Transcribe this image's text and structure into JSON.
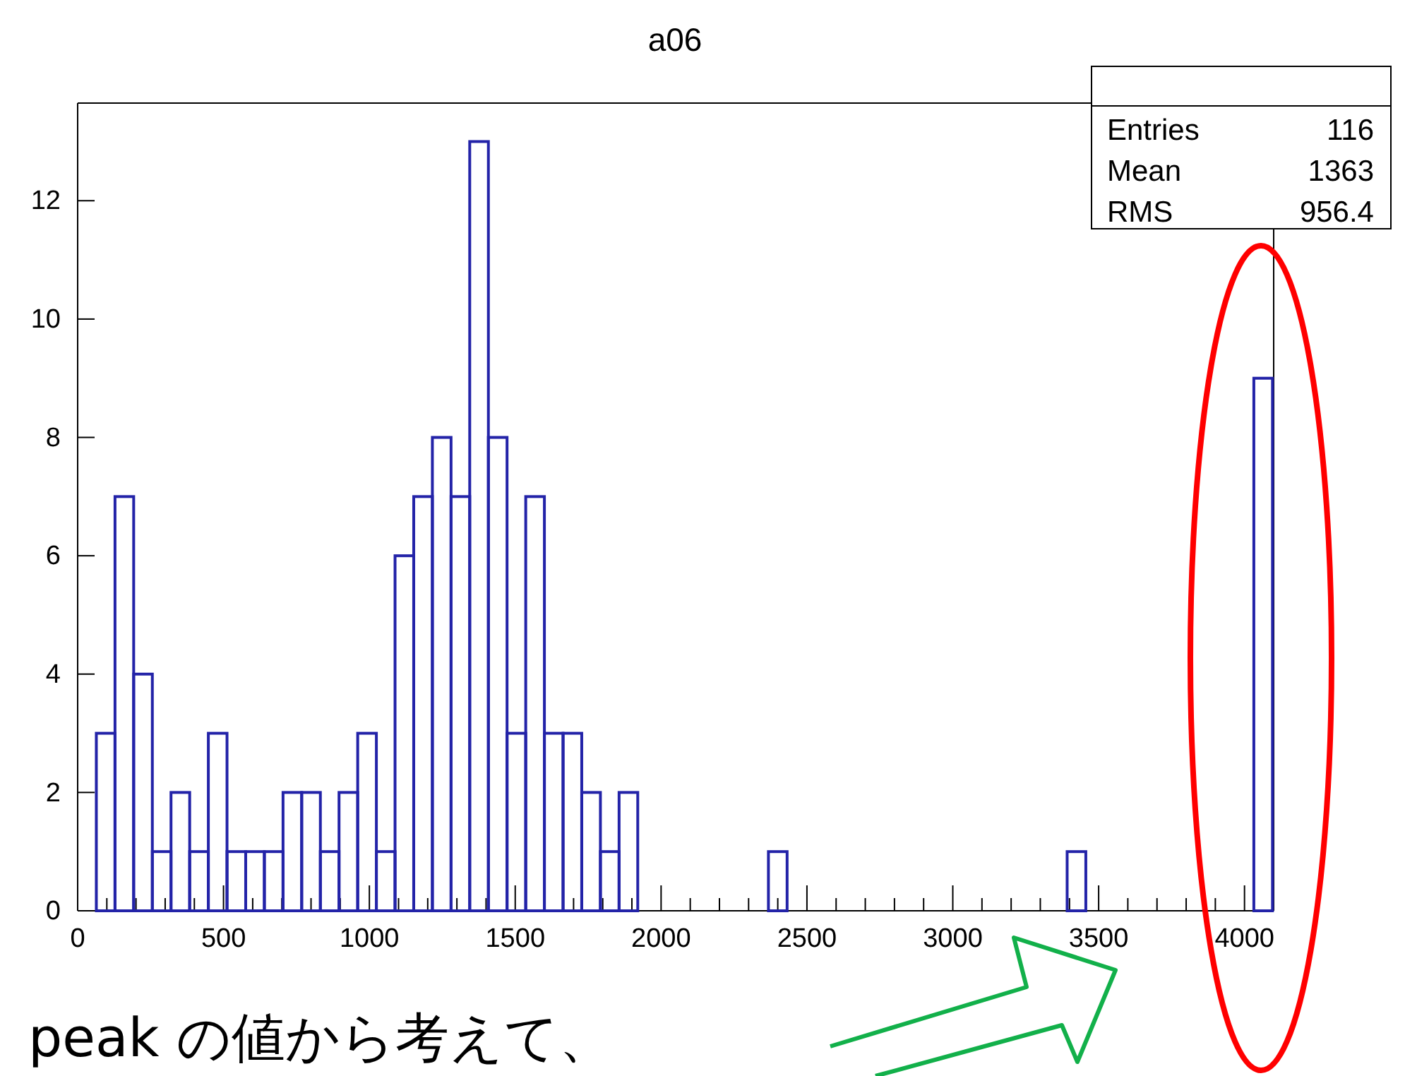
{
  "chart_data": {
    "type": "histogram",
    "title": "a06",
    "bins": [
      0,
      64,
      128,
      192,
      256,
      320,
      384,
      448,
      512,
      576,
      640,
      704,
      768,
      832,
      896,
      960,
      1024,
      1088,
      1152,
      1216,
      1280,
      1344,
      1408,
      1472,
      1536,
      1600,
      1664,
      1728,
      1792,
      1856,
      1920,
      1984,
      2048,
      2112,
      2176,
      2240,
      2304,
      2368,
      2432,
      2496,
      2560,
      2624,
      2688,
      2752,
      2816,
      2880,
      2944,
      3008,
      3072,
      3136,
      3200,
      3264,
      3328,
      3392,
      3456,
      3520,
      3584,
      3648,
      3712,
      3776,
      3840,
      3904,
      3968,
      4032,
      4096
    ],
    "values": [
      0,
      3,
      7,
      4,
      1,
      2,
      1,
      3,
      1,
      1,
      1,
      2,
      2,
      1,
      2,
      3,
      1,
      6,
      7,
      8,
      7,
      13,
      8,
      3,
      7,
      3,
      3,
      2,
      1,
      2,
      0,
      0,
      0,
      0,
      0,
      0,
      0,
      1,
      0,
      0,
      0,
      0,
      0,
      0,
      0,
      0,
      0,
      0,
      0,
      0,
      0,
      0,
      0,
      1,
      0,
      0,
      0,
      0,
      0,
      0,
      0,
      0,
      0,
      9
    ],
    "color": "#2323a8",
    "xlim": [
      0,
      4100
    ],
    "ylim": [
      0,
      13.65
    ],
    "xticks": [
      0,
      {
        "value": 100,
        "label": null
      },
      {
        "value": 200,
        "label": null
      },
      {
        "value": 300,
        "label": null
      },
      {
        "value": 400,
        "label": null
      },
      500,
      {
        "value": 600,
        "label": null
      },
      {
        "value": 700,
        "label": null
      },
      {
        "value": 800,
        "label": null
      },
      {
        "value": 900,
        "label": null
      },
      1000,
      {
        "value": 1100,
        "label": null
      },
      {
        "value": 1200,
        "label": null
      },
      {
        "value": 1300,
        "label": null
      },
      {
        "value": 1400,
        "label": null
      },
      1500,
      {
        "value": 1600,
        "label": null
      },
      {
        "value": 1700,
        "label": null
      },
      {
        "value": 1800,
        "label": null
      },
      {
        "value": 1900,
        "label": null
      },
      2000,
      {
        "value": 2100,
        "label": null
      },
      {
        "value": 2200,
        "label": null
      },
      {
        "value": 2300,
        "label": null
      },
      {
        "value": 2400,
        "label": null
      },
      2500,
      {
        "value": 2600,
        "label": null
      },
      {
        "value": 2700,
        "label": null
      },
      {
        "value": 2800,
        "label": null
      },
      {
        "value": 2900,
        "label": null
      },
      3000,
      {
        "value": 3100,
        "label": null
      },
      {
        "value": 3200,
        "label": null
      },
      {
        "value": 3300,
        "label": null
      },
      {
        "value": 3400,
        "label": null
      },
      3500,
      {
        "value": 3600,
        "label": null
      },
      {
        "value": 3700,
        "label": null
      },
      {
        "value": 3800,
        "label": null
      },
      {
        "value": 3900,
        "label": null
      },
      4000
    ],
    "yticks": [
      0,
      2,
      4,
      6,
      8,
      10,
      12
    ],
    "annotations": [
      "Entries 116",
      "Mean 1363",
      "RMS 956.4",
      "peak の値から考えて、"
    ]
  }
}
